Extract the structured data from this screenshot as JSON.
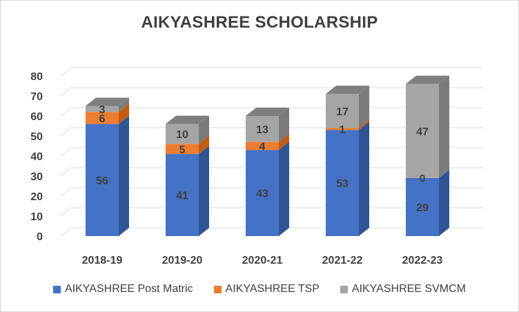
{
  "chart_data": {
    "type": "bar",
    "stacked": true,
    "three_d": true,
    "title": "AIKYASHREE SCHOLARSHIP",
    "categories": [
      "2018-19",
      "2019-20",
      "2020-21",
      "2021-22",
      "2022-23"
    ],
    "series": [
      {
        "name": "AIKYASHREE Post Matric",
        "values": [
          56,
          41,
          43,
          53,
          29
        ],
        "color": "#4472c4",
        "side_color": "#2f5597",
        "top_color": "#5b86d1"
      },
      {
        "name": "AIKYASHREE TSP",
        "values": [
          6,
          5,
          4,
          1,
          0
        ],
        "color": "#ed7d31",
        "side_color": "#c55a11",
        "top_color": "#f19456"
      },
      {
        "name": "AIKYASHREE SVMCM",
        "values": [
          3,
          10,
          13,
          17,
          47
        ],
        "color": "#a5a5a5",
        "side_color": "#7b7b7b",
        "top_color": "#7f7f7f"
      }
    ],
    "ylim": [
      0,
      80
    ],
    "yticks": [
      0,
      10,
      20,
      30,
      40,
      50,
      60,
      70,
      80
    ],
    "grid": true,
    "legend_position": "bottom",
    "axis_text_color": "#404040",
    "grid_color": "#d9d9d9",
    "label_color": "#404040"
  }
}
